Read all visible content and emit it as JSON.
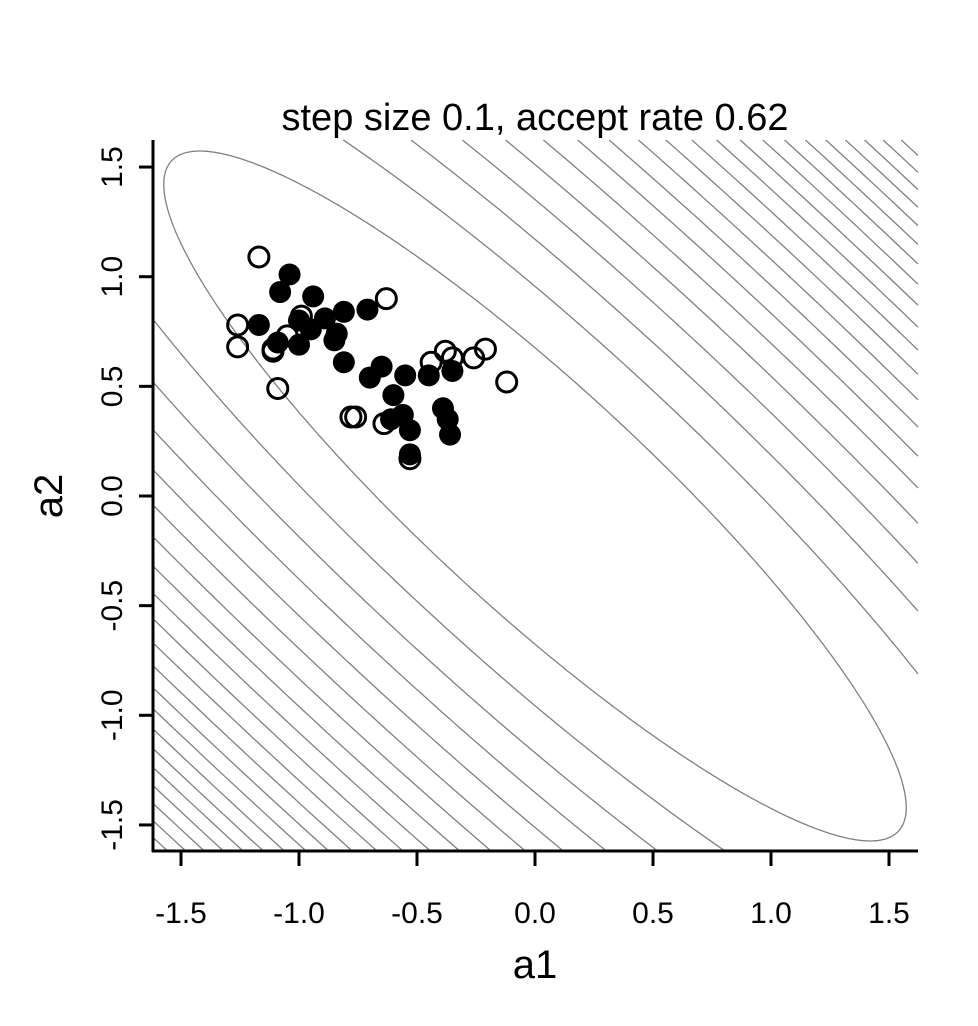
{
  "chart_data": {
    "type": "scatter",
    "title": "step size 0.1, accept rate 0.62",
    "xlabel": "a1",
    "ylabel": "a2",
    "xlim": [
      -1.62,
      1.62
    ],
    "ylim": [
      -1.62,
      1.62
    ],
    "xticks": [
      "-1.5",
      "-1.0",
      "-0.5",
      "0.0",
      "0.5",
      "1.0",
      "1.5"
    ],
    "yticks": [
      "-1.5",
      "-1.0",
      "-0.5",
      "0.0",
      "0.5",
      "1.0",
      "1.5"
    ],
    "grid": false,
    "contour_color": "#808080",
    "point_color": "#000000",
    "contours": {
      "major_sd": 2.17,
      "minor_sd": 0.49,
      "levels": [
        1,
        2,
        3,
        4,
        5,
        6,
        7,
        8,
        9,
        10,
        11,
        12,
        13,
        14,
        15,
        16,
        17,
        18,
        19,
        20,
        21,
        22,
        23,
        24
      ]
    },
    "series": [
      {
        "marker": "open-circle",
        "x": [
          -1.17,
          -1.26,
          -1.26,
          -1.11,
          -1.11,
          -1.09,
          -0.99,
          -1.05,
          -0.63,
          -0.44,
          -0.38,
          -0.35,
          -0.26,
          -0.21,
          -0.12,
          -0.78,
          -0.76,
          -0.64,
          -0.53
        ],
        "y": [
          1.09,
          0.78,
          0.68,
          0.67,
          0.66,
          0.49,
          0.82,
          0.73,
          0.9,
          0.61,
          0.66,
          0.63,
          0.63,
          0.67,
          0.52,
          0.36,
          0.36,
          0.33,
          0.17
        ]
      },
      {
        "marker": "filled-circle",
        "x": [
          -1.04,
          -1.08,
          -0.94,
          -1.17,
          -1.0,
          -0.95,
          -0.89,
          -0.81,
          -0.71,
          -0.85,
          -0.84,
          -1.0,
          -1.09,
          -0.81,
          -0.65,
          -0.7,
          -0.55,
          -0.45,
          -0.35,
          -0.6,
          -0.56,
          -0.61,
          -0.53,
          -0.53,
          -0.39,
          -0.37,
          -0.36
        ],
        "y": [
          1.01,
          0.93,
          0.91,
          0.78,
          0.8,
          0.76,
          0.81,
          0.84,
          0.85,
          0.71,
          0.74,
          0.69,
          0.7,
          0.61,
          0.59,
          0.54,
          0.55,
          0.55,
          0.57,
          0.46,
          0.37,
          0.35,
          0.3,
          0.19,
          0.4,
          0.35,
          0.28
        ]
      }
    ]
  }
}
